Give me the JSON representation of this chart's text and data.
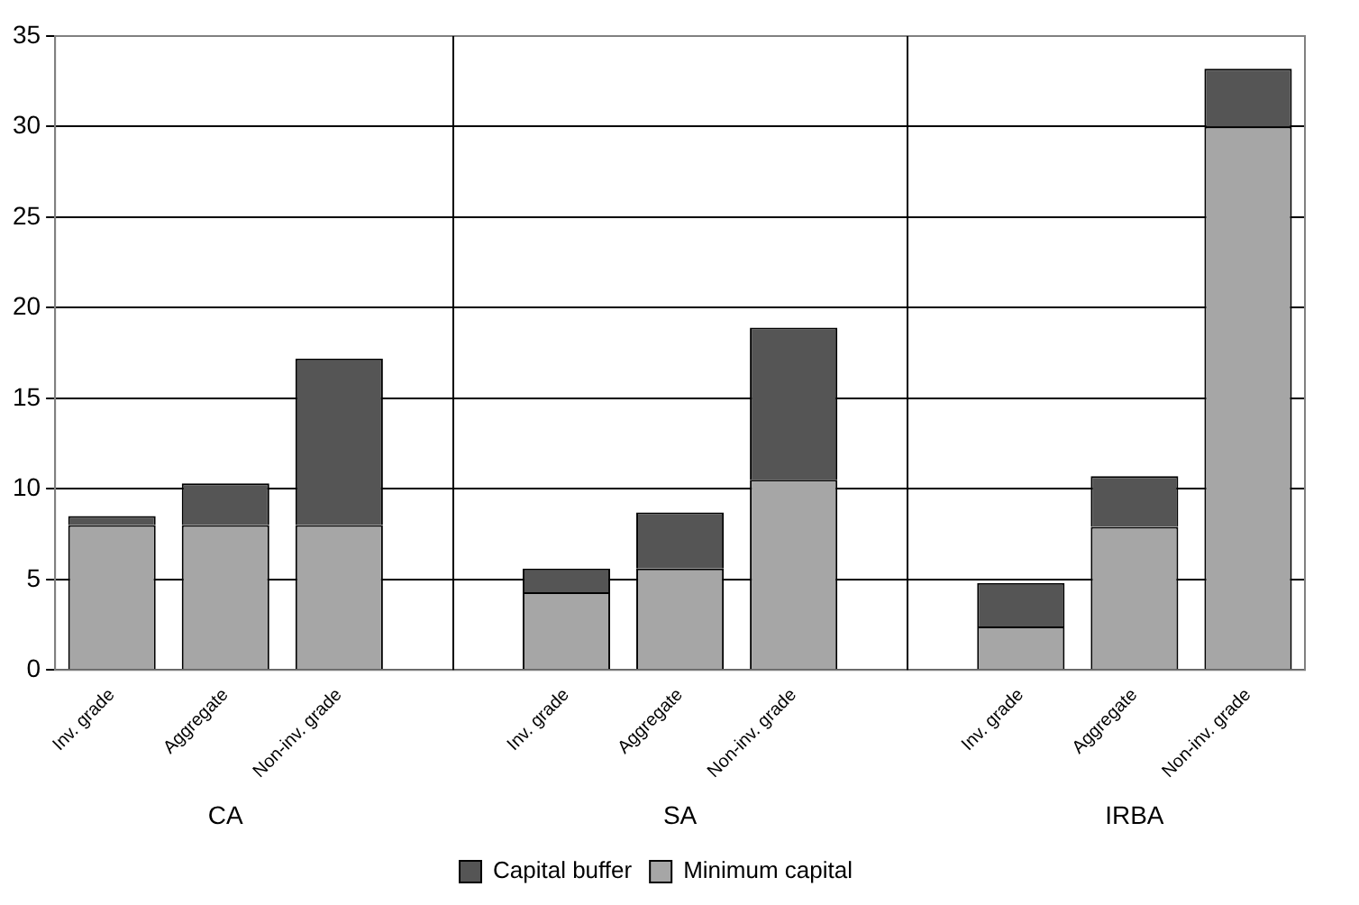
{
  "chart_data": {
    "type": "bar",
    "stacked": true,
    "categories": [
      "Inv. grade",
      "Aggregate",
      "Non-inv. grade",
      null,
      "Inv. grade",
      "Aggregate",
      "Non-inv. grade",
      null,
      "Inv. grade",
      "Aggregate",
      "Non-inv. grade"
    ],
    "series": [
      {
        "name": "Minimum capital",
        "color": "#a6a6a6",
        "values": [
          8,
          8,
          8,
          null,
          4.3,
          5.6,
          10.5,
          null,
          2.4,
          7.9,
          30
        ]
      },
      {
        "name": "Capital buffer",
        "color": "#555555",
        "values": [
          0.5,
          2.3,
          9.2,
          null,
          1.3,
          3.1,
          8.4,
          null,
          2.4,
          2.8,
          3.2
        ]
      }
    ],
    "annotations": [
      "CA",
      "SA",
      "IRBA"
    ],
    "ylim": [
      0,
      35
    ],
    "yticks": [
      0,
      5,
      10,
      15,
      20,
      25,
      30,
      35
    ],
    "grid": "y",
    "legend": "bottom"
  }
}
